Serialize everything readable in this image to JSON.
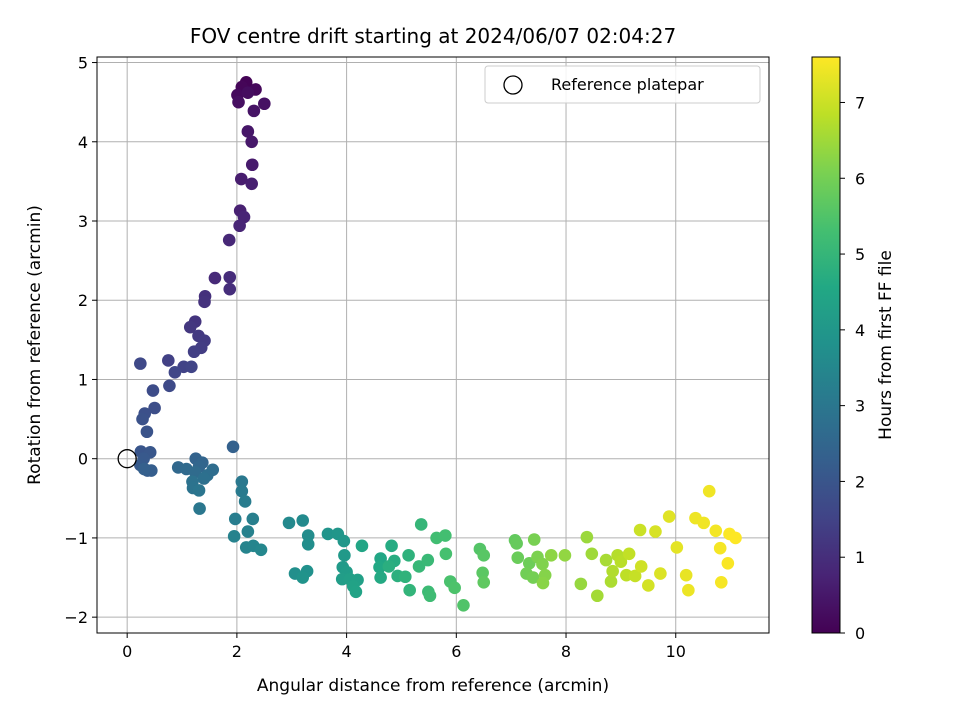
{
  "chart_data": {
    "type": "scatter",
    "title": "FOV centre drift starting at 2024/06/07 02:04:27",
    "xlabel": "Angular distance from reference (arcmin)",
    "ylabel": "Rotation from reference (arcmin)",
    "xlim": [
      -0.55,
      11.7
    ],
    "ylim": [
      -2.2,
      5.07
    ],
    "xticks": [
      0,
      2,
      4,
      6,
      8,
      10
    ],
    "yticks": [
      -2,
      -1,
      0,
      1,
      2,
      3,
      4,
      5
    ],
    "grid": true,
    "legend": {
      "position": "top-right",
      "entries": [
        "Reference platepar"
      ]
    },
    "reference_point": {
      "x": 0,
      "y": 0,
      "label": "Reference platepar"
    },
    "colorbar": {
      "label": "Hours from first FF file",
      "range": [
        0,
        7.6
      ],
      "ticks": [
        0,
        1,
        2,
        3,
        4,
        5,
        6,
        7
      ],
      "colormap": "viridis"
    },
    "points": [
      {
        "x": 2.17,
        "y": 4.75,
        "c": 0.05
      },
      {
        "x": 2.09,
        "y": 4.69,
        "c": 0.1
      },
      {
        "x": 2.34,
        "y": 4.66,
        "c": 0.15
      },
      {
        "x": 2.01,
        "y": 4.59,
        "c": 0.2
      },
      {
        "x": 2.2,
        "y": 4.62,
        "c": 0.25
      },
      {
        "x": 2.03,
        "y": 4.5,
        "c": 0.3
      },
      {
        "x": 2.5,
        "y": 4.48,
        "c": 0.35
      },
      {
        "x": 2.31,
        "y": 4.39,
        "c": 0.4
      },
      {
        "x": 2.2,
        "y": 4.13,
        "c": 0.45
      },
      {
        "x": 2.27,
        "y": 4.0,
        "c": 0.5
      },
      {
        "x": 2.28,
        "y": 3.71,
        "c": 0.55
      },
      {
        "x": 2.08,
        "y": 3.53,
        "c": 0.6
      },
      {
        "x": 2.27,
        "y": 3.47,
        "c": 0.65
      },
      {
        "x": 2.06,
        "y": 3.13,
        "c": 0.7
      },
      {
        "x": 2.13,
        "y": 3.05,
        "c": 0.75
      },
      {
        "x": 2.05,
        "y": 2.94,
        "c": 0.8
      },
      {
        "x": 1.86,
        "y": 2.76,
        "c": 0.85
      },
      {
        "x": 1.6,
        "y": 2.28,
        "c": 0.9
      },
      {
        "x": 1.87,
        "y": 2.29,
        "c": 0.95
      },
      {
        "x": 1.87,
        "y": 2.14,
        "c": 1.0
      },
      {
        "x": 1.42,
        "y": 2.05,
        "c": 1.05
      },
      {
        "x": 1.41,
        "y": 1.98,
        "c": 1.1
      },
      {
        "x": 1.24,
        "y": 1.73,
        "c": 1.15
      },
      {
        "x": 1.15,
        "y": 1.66,
        "c": 1.2
      },
      {
        "x": 1.3,
        "y": 1.55,
        "c": 1.25
      },
      {
        "x": 1.41,
        "y": 1.49,
        "c": 1.3
      },
      {
        "x": 1.35,
        "y": 1.4,
        "c": 1.35
      },
      {
        "x": 1.22,
        "y": 1.35,
        "c": 1.4
      },
      {
        "x": 0.75,
        "y": 1.24,
        "c": 1.45
      },
      {
        "x": 1.03,
        "y": 1.16,
        "c": 1.5
      },
      {
        "x": 1.17,
        "y": 1.16,
        "c": 1.55
      },
      {
        "x": 0.87,
        "y": 1.09,
        "c": 1.6
      },
      {
        "x": 0.24,
        "y": 1.2,
        "c": 1.65
      },
      {
        "x": 0.77,
        "y": 0.92,
        "c": 1.7
      },
      {
        "x": 0.47,
        "y": 0.86,
        "c": 1.75
      },
      {
        "x": 0.5,
        "y": 0.64,
        "c": 1.8
      },
      {
        "x": 0.32,
        "y": 0.57,
        "c": 1.85
      },
      {
        "x": 0.28,
        "y": 0.5,
        "c": 1.9
      },
      {
        "x": 0.36,
        "y": 0.34,
        "c": 1.95
      },
      {
        "x": 0.25,
        "y": 0.09,
        "c": 2.0
      },
      {
        "x": 0.42,
        "y": 0.08,
        "c": 2.05
      },
      {
        "x": 0.3,
        "y": 0.0,
        "c": 2.1
      },
      {
        "x": 0.24,
        "y": -0.08,
        "c": 2.15
      },
      {
        "x": 0.37,
        "y": -0.15,
        "c": 2.2
      },
      {
        "x": 0.44,
        "y": -0.15,
        "c": 2.25
      },
      {
        "x": 0.31,
        "y": -0.13,
        "c": 2.3
      },
      {
        "x": 1.93,
        "y": 0.15,
        "c": 2.35
      },
      {
        "x": 1.25,
        "y": 0.0,
        "c": 2.4
      },
      {
        "x": 1.37,
        "y": -0.05,
        "c": 2.45
      },
      {
        "x": 1.31,
        "y": -0.1,
        "c": 2.5
      },
      {
        "x": 0.93,
        "y": -0.11,
        "c": 2.55
      },
      {
        "x": 1.08,
        "y": -0.13,
        "c": 2.6
      },
      {
        "x": 1.24,
        "y": -0.17,
        "c": 2.65
      },
      {
        "x": 1.56,
        "y": -0.14,
        "c": 2.7
      },
      {
        "x": 1.46,
        "y": -0.21,
        "c": 2.75
      },
      {
        "x": 1.4,
        "y": -0.25,
        "c": 2.8
      },
      {
        "x": 1.19,
        "y": -0.29,
        "c": 2.85
      },
      {
        "x": 1.2,
        "y": -0.37,
        "c": 2.9
      },
      {
        "x": 1.31,
        "y": -0.4,
        "c": 2.95
      },
      {
        "x": 1.32,
        "y": -0.63,
        "c": 3.0
      },
      {
        "x": 2.09,
        "y": -0.29,
        "c": 3.05
      },
      {
        "x": 2.09,
        "y": -0.41,
        "c": 3.1
      },
      {
        "x": 2.15,
        "y": -0.54,
        "c": 3.15
      },
      {
        "x": 1.97,
        "y": -0.76,
        "c": 3.2
      },
      {
        "x": 2.29,
        "y": -0.76,
        "c": 3.25
      },
      {
        "x": 2.2,
        "y": -0.92,
        "c": 3.3
      },
      {
        "x": 1.95,
        "y": -0.98,
        "c": 3.35
      },
      {
        "x": 2.17,
        "y": -1.12,
        "c": 3.4
      },
      {
        "x": 2.3,
        "y": -1.1,
        "c": 3.45
      },
      {
        "x": 2.44,
        "y": -1.15,
        "c": 3.5
      },
      {
        "x": 2.95,
        "y": -0.81,
        "c": 3.55
      },
      {
        "x": 3.2,
        "y": -0.78,
        "c": 3.6
      },
      {
        "x": 3.3,
        "y": -0.97,
        "c": 3.65
      },
      {
        "x": 3.3,
        "y": -1.08,
        "c": 3.7
      },
      {
        "x": 3.06,
        "y": -1.45,
        "c": 3.75
      },
      {
        "x": 3.28,
        "y": -1.42,
        "c": 3.8
      },
      {
        "x": 3.2,
        "y": -1.5,
        "c": 3.85
      },
      {
        "x": 3.66,
        "y": -0.95,
        "c": 3.9
      },
      {
        "x": 3.84,
        "y": -0.95,
        "c": 3.95
      },
      {
        "x": 3.95,
        "y": -1.04,
        "c": 4.0
      },
      {
        "x": 3.96,
        "y": -1.22,
        "c": 4.05
      },
      {
        "x": 3.93,
        "y": -1.37,
        "c": 4.1
      },
      {
        "x": 4.0,
        "y": -1.43,
        "c": 4.15
      },
      {
        "x": 3.92,
        "y": -1.52,
        "c": 4.2
      },
      {
        "x": 4.06,
        "y": -1.52,
        "c": 4.25
      },
      {
        "x": 4.2,
        "y": -1.53,
        "c": 4.3
      },
      {
        "x": 4.12,
        "y": -1.61,
        "c": 4.35
      },
      {
        "x": 4.17,
        "y": -1.68,
        "c": 4.4
      },
      {
        "x": 4.28,
        "y": -1.1,
        "c": 4.45
      },
      {
        "x": 4.62,
        "y": -1.26,
        "c": 4.5
      },
      {
        "x": 4.6,
        "y": -1.37,
        "c": 4.55
      },
      {
        "x": 4.62,
        "y": -1.5,
        "c": 4.6
      },
      {
        "x": 4.82,
        "y": -1.1,
        "c": 4.65
      },
      {
        "x": 4.87,
        "y": -1.29,
        "c": 4.7
      },
      {
        "x": 4.77,
        "y": -1.36,
        "c": 4.75
      },
      {
        "x": 4.93,
        "y": -1.48,
        "c": 4.8
      },
      {
        "x": 5.13,
        "y": -1.22,
        "c": 4.85
      },
      {
        "x": 5.07,
        "y": -1.49,
        "c": 4.9
      },
      {
        "x": 5.15,
        "y": -1.66,
        "c": 4.95
      },
      {
        "x": 5.36,
        "y": -0.83,
        "c": 5.0
      },
      {
        "x": 5.32,
        "y": -1.36,
        "c": 5.05
      },
      {
        "x": 5.48,
        "y": -1.28,
        "c": 5.1
      },
      {
        "x": 5.49,
        "y": -1.68,
        "c": 5.15
      },
      {
        "x": 5.52,
        "y": -1.73,
        "c": 5.2
      },
      {
        "x": 5.64,
        "y": -1.0,
        "c": 5.25
      },
      {
        "x": 5.8,
        "y": -0.97,
        "c": 5.3
      },
      {
        "x": 5.81,
        "y": -1.2,
        "c": 5.35
      },
      {
        "x": 5.89,
        "y": -1.55,
        "c": 5.4
      },
      {
        "x": 5.97,
        "y": -1.63,
        "c": 5.45
      },
      {
        "x": 6.13,
        "y": -1.85,
        "c": 5.5
      },
      {
        "x": 6.43,
        "y": -1.14,
        "c": 5.55
      },
      {
        "x": 6.5,
        "y": -1.22,
        "c": 5.6
      },
      {
        "x": 6.48,
        "y": -1.44,
        "c": 5.65
      },
      {
        "x": 6.5,
        "y": -1.56,
        "c": 5.7
      },
      {
        "x": 7.07,
        "y": -1.03,
        "c": 5.75
      },
      {
        "x": 7.1,
        "y": -1.07,
        "c": 5.8
      },
      {
        "x": 7.12,
        "y": -1.25,
        "c": 5.85
      },
      {
        "x": 7.33,
        "y": -1.32,
        "c": 5.9
      },
      {
        "x": 7.28,
        "y": -1.45,
        "c": 5.95
      },
      {
        "x": 7.4,
        "y": -1.5,
        "c": 6.0
      },
      {
        "x": 7.42,
        "y": -1.02,
        "c": 6.05
      },
      {
        "x": 7.48,
        "y": -1.24,
        "c": 6.1
      },
      {
        "x": 7.57,
        "y": -1.33,
        "c": 6.15
      },
      {
        "x": 7.62,
        "y": -1.47,
        "c": 6.2
      },
      {
        "x": 7.58,
        "y": -1.57,
        "c": 6.25
      },
      {
        "x": 7.73,
        "y": -1.22,
        "c": 6.3
      },
      {
        "x": 7.98,
        "y": -1.22,
        "c": 6.35
      },
      {
        "x": 8.27,
        "y": -1.58,
        "c": 6.4
      },
      {
        "x": 8.38,
        "y": -0.99,
        "c": 6.45
      },
      {
        "x": 8.47,
        "y": -1.2,
        "c": 6.5
      },
      {
        "x": 8.57,
        "y": -1.73,
        "c": 6.55
      },
      {
        "x": 8.73,
        "y": -1.28,
        "c": 6.6
      },
      {
        "x": 8.82,
        "y": -1.55,
        "c": 6.65
      },
      {
        "x": 8.85,
        "y": -1.42,
        "c": 6.7
      },
      {
        "x": 8.94,
        "y": -1.22,
        "c": 6.75
      },
      {
        "x": 9.0,
        "y": -1.3,
        "c": 6.8
      },
      {
        "x": 9.1,
        "y": -1.47,
        "c": 6.85
      },
      {
        "x": 9.15,
        "y": -1.2,
        "c": 6.9
      },
      {
        "x": 9.26,
        "y": -1.48,
        "c": 6.95
      },
      {
        "x": 9.35,
        "y": -0.9,
        "c": 7.0
      },
      {
        "x": 9.37,
        "y": -1.36,
        "c": 7.05
      },
      {
        "x": 9.5,
        "y": -1.6,
        "c": 7.1
      },
      {
        "x": 9.63,
        "y": -0.92,
        "c": 7.15
      },
      {
        "x": 9.72,
        "y": -1.45,
        "c": 7.2
      },
      {
        "x": 9.88,
        "y": -0.73,
        "c": 7.25
      },
      {
        "x": 10.02,
        "y": -1.12,
        "c": 7.3
      },
      {
        "x": 10.19,
        "y": -1.47,
        "c": 7.35
      },
      {
        "x": 10.23,
        "y": -1.66,
        "c": 7.4
      },
      {
        "x": 10.36,
        "y": -0.75,
        "c": 7.42
      },
      {
        "x": 10.51,
        "y": -0.81,
        "c": 7.45
      },
      {
        "x": 10.61,
        "y": -0.41,
        "c": 7.45
      },
      {
        "x": 10.73,
        "y": -0.91,
        "c": 7.48
      },
      {
        "x": 10.81,
        "y": -1.13,
        "c": 7.5
      },
      {
        "x": 10.83,
        "y": -1.56,
        "c": 7.52
      },
      {
        "x": 10.95,
        "y": -1.32,
        "c": 7.55
      },
      {
        "x": 10.98,
        "y": -0.95,
        "c": 7.58
      },
      {
        "x": 11.09,
        "y": -1.0,
        "c": 7.6
      }
    ]
  }
}
